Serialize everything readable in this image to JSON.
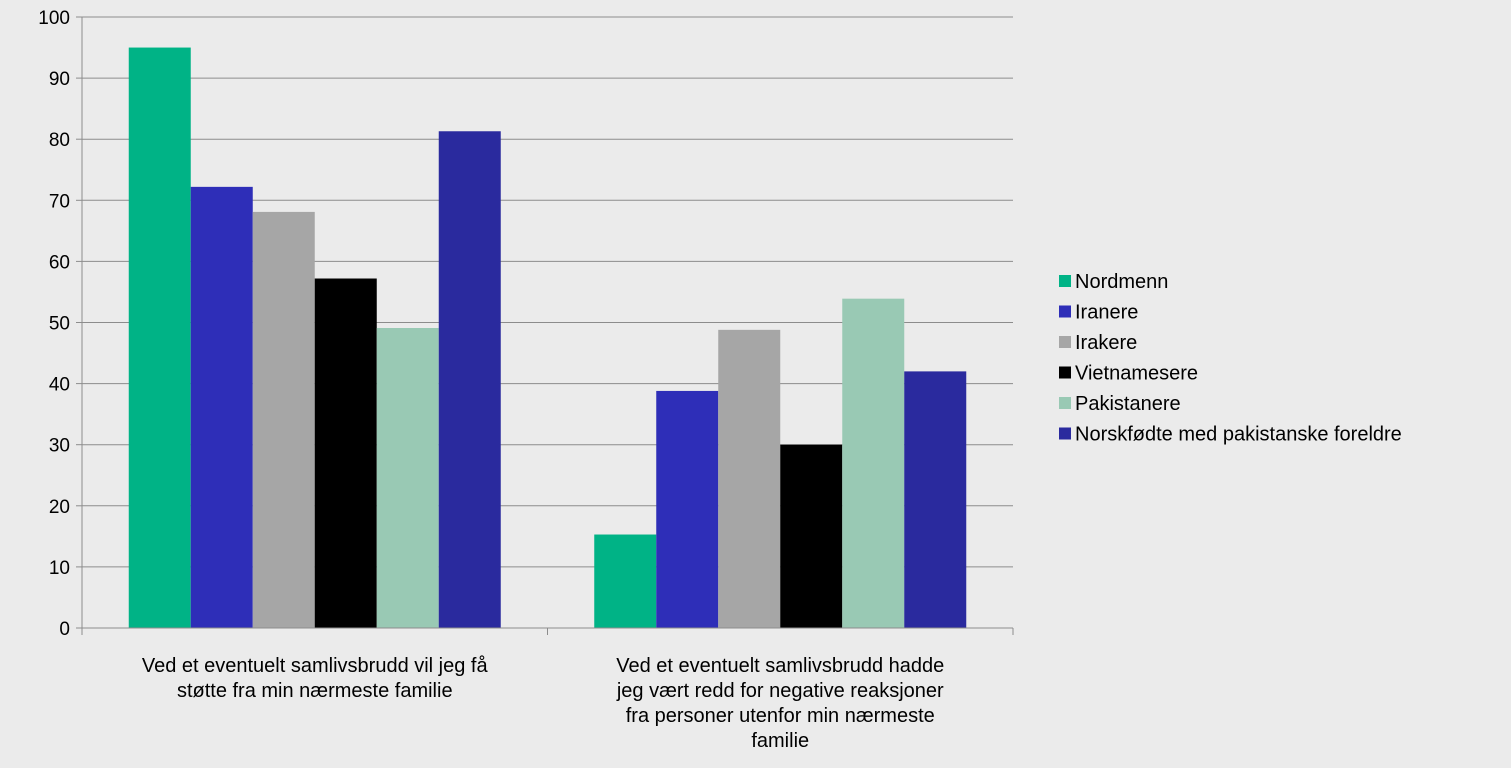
{
  "chart_data": {
    "type": "bar",
    "title": "",
    "xlabel": "",
    "ylabel": "",
    "ylim": [
      0,
      100
    ],
    "yticks": [
      0,
      10,
      20,
      30,
      40,
      50,
      60,
      70,
      80,
      90,
      100
    ],
    "grid": true,
    "legend_position": "right",
    "categories": [
      [
        "Ved et eventuelt samlivsbrudd vil jeg få",
        "støtte fra min nærmeste familie"
      ],
      [
        "Ved et eventuelt samlivsbrudd hadde",
        "jeg vært redd for negative reaksjoner",
        "fra personer utenfor min nærmeste",
        "familie"
      ]
    ],
    "series": [
      {
        "name": "Nordmenn",
        "color": "#00b386",
        "values": [
          95,
          15.3
        ]
      },
      {
        "name": "Iranere",
        "color": "#2e2eb8",
        "values": [
          72.2,
          38.8
        ]
      },
      {
        "name": "Irakere",
        "color": "#a6a6a6",
        "values": [
          68.1,
          48.8
        ]
      },
      {
        "name": "Vietnamesere",
        "color": "#000000",
        "values": [
          57.2,
          30
        ]
      },
      {
        "name": "Pakistanere",
        "color": "#99c9b4",
        "values": [
          49.1,
          53.9
        ]
      },
      {
        "name": "Norskfødte med pakistanske foreldre",
        "color": "#2a2a9e",
        "values": [
          81.3,
          42
        ]
      }
    ]
  }
}
